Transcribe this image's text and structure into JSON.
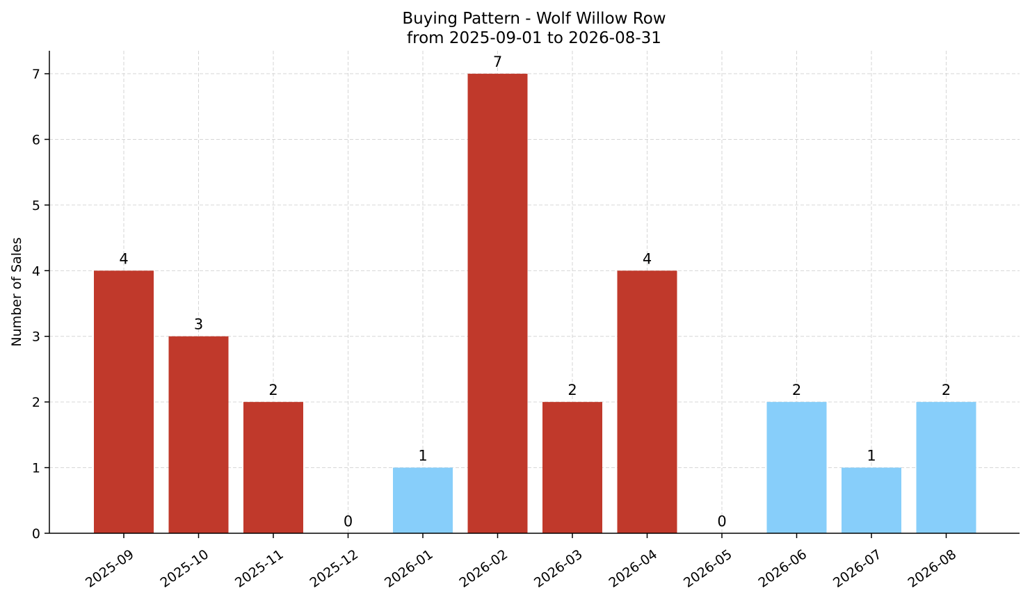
{
  "chart_data": {
    "type": "bar",
    "title": "Buying Pattern - Wolf Willow Row",
    "subtitle": "from 2025-09-01 to 2026-08-31",
    "xlabel": "",
    "ylabel": "Number of Sales",
    "categories": [
      "2025-09",
      "2025-10",
      "2025-11",
      "2025-12",
      "2026-01",
      "2026-02",
      "2026-03",
      "2026-04",
      "2026-05",
      "2026-06",
      "2026-07",
      "2026-08"
    ],
    "values": [
      4,
      3,
      2,
      0,
      1,
      7,
      2,
      4,
      0,
      2,
      1,
      2
    ],
    "bar_colors": [
      "#c0392b",
      "#c0392b",
      "#c0392b",
      "#c0392b",
      "#87cefa",
      "#c0392b",
      "#c0392b",
      "#c0392b",
      "#c0392b",
      "#87cefa",
      "#87cefa",
      "#87cefa"
    ],
    "ylim": [
      0,
      7.35
    ],
    "yticks": [
      0,
      1,
      2,
      3,
      4,
      5,
      6,
      7
    ],
    "grid": true,
    "legend": "none"
  }
}
